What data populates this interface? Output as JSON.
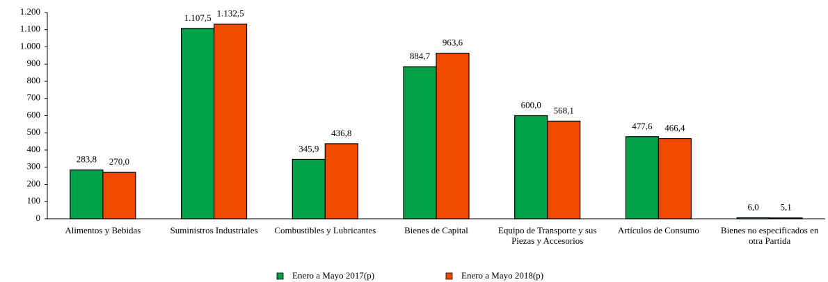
{
  "chart_data": {
    "type": "bar",
    "categories": [
      "Alimentos y Bebidas",
      "Suministros Industriales",
      "Combustibles y Lubricantes",
      "Bienes de Capital",
      "Equipo de Transporte y sus Piezas y Accesorios",
      "Artículos de Consumo",
      "Bienes no especificados en otra Partida"
    ],
    "series": [
      {
        "name": "Enero a Mayo 2017(p)",
        "color": "#00a046",
        "values": [
          283.8,
          1107.5,
          345.9,
          884.7,
          600.0,
          477.6,
          6.0
        ],
        "value_labels": [
          "283,8",
          "1.107,5",
          "345,9",
          "884,7",
          "600,0",
          "477,6",
          "6,0"
        ]
      },
      {
        "name": "Enero a Mayo 2018(p)",
        "color": "#f04a00",
        "values": [
          270.0,
          1132.5,
          436.8,
          963.6,
          568.1,
          466.4,
          5.1
        ],
        "value_labels": [
          "270,0",
          "1.132,5",
          "436,8",
          "963,6",
          "568,1",
          "466,4",
          "5,1"
        ]
      }
    ],
    "ylim": [
      0,
      1200
    ],
    "yticks": [
      0,
      100,
      200,
      300,
      400,
      500,
      600,
      700,
      800,
      900,
      {
        "value": 1000,
        "label": "1.000"
      },
      {
        "value": 1100,
        "label": "1.100"
      },
      {
        "value": 1200,
        "label": "1.200"
      }
    ]
  }
}
